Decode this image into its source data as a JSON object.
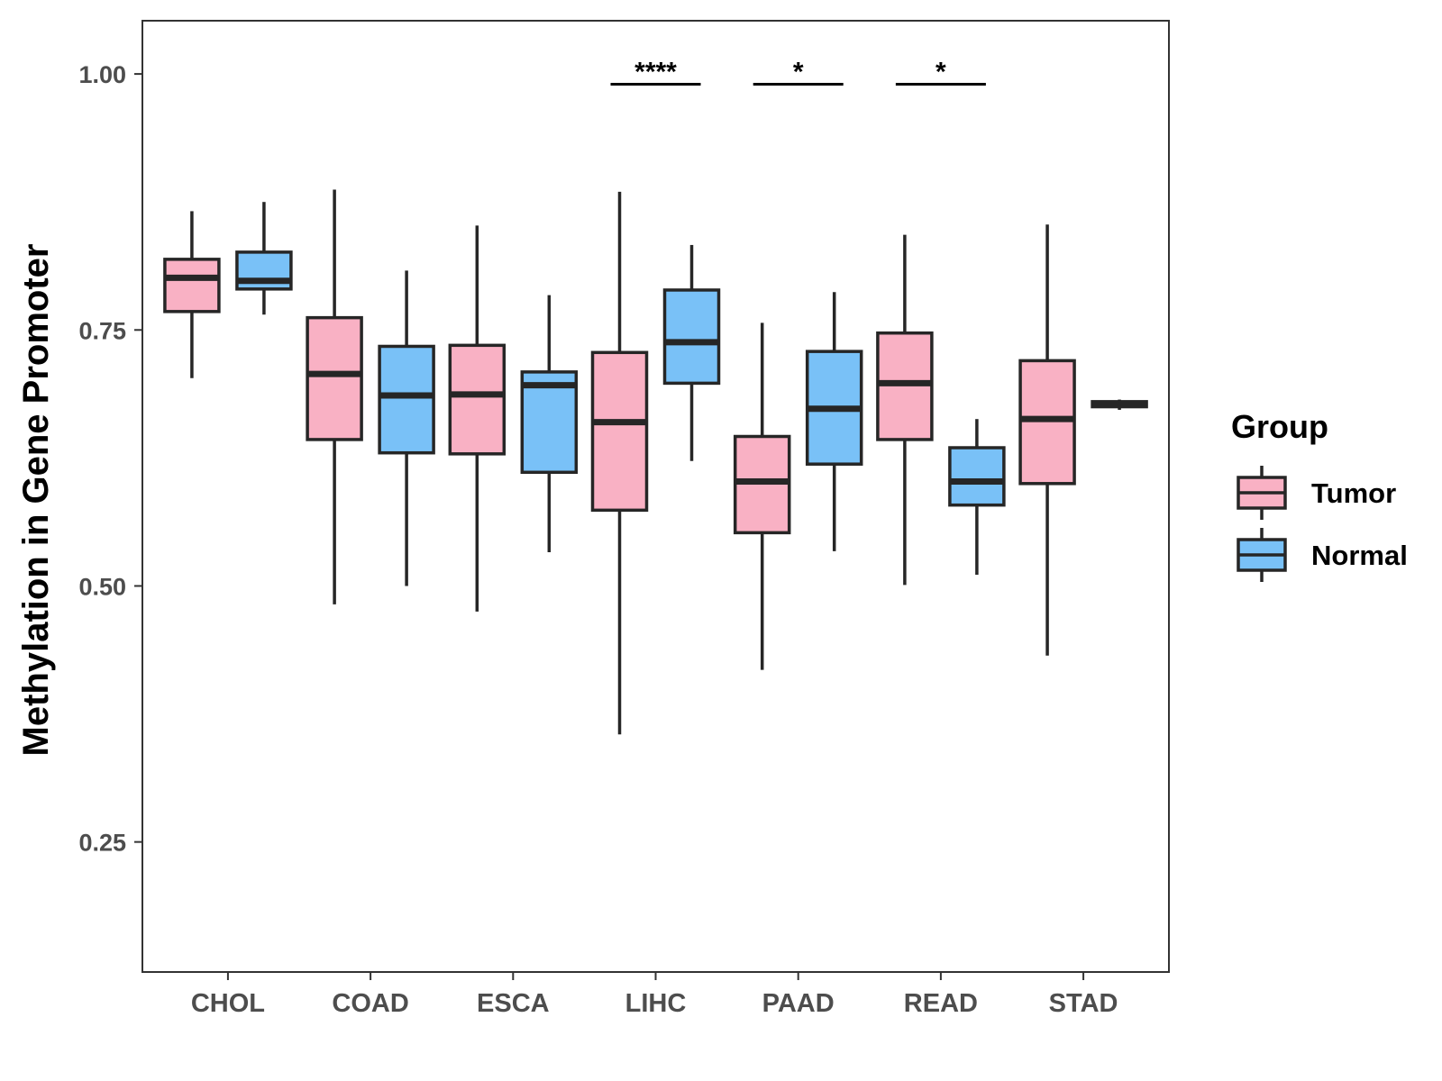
{
  "chart_data": {
    "type": "box",
    "ylabel": "Methylation in Gene Promoter",
    "xlabel": "",
    "ylim": [
      0.123,
      1.052
    ],
    "yticks": [
      0.25,
      0.5,
      0.75,
      1.0
    ],
    "ytick_labels": [
      "0.25",
      "0.50",
      "0.75",
      "1.00"
    ],
    "grid": false,
    "legend_position": "right",
    "categories": [
      "CHOL",
      "COAD",
      "ESCA",
      "LIHC",
      "PAAD",
      "READ",
      "STAD"
    ],
    "legend": {
      "title": "Group",
      "entries": [
        {
          "label": "Tumor",
          "color": "#f9b1c4"
        },
        {
          "label": "Normal",
          "color": "#79c1f7"
        }
      ]
    },
    "series": [
      {
        "name": "Tumor",
        "color": "#f9b1c4",
        "boxes": [
          {
            "category": "CHOL",
            "min": 0.703,
            "q1": 0.768,
            "median": 0.801,
            "q3": 0.819,
            "max": 0.866
          },
          {
            "category": "COAD",
            "min": 0.482,
            "q1": 0.643,
            "median": 0.707,
            "q3": 0.762,
            "max": 0.887
          },
          {
            "category": "ESCA",
            "min": 0.475,
            "q1": 0.629,
            "median": 0.687,
            "q3": 0.735,
            "max": 0.852
          },
          {
            "category": "LIHC",
            "min": 0.355,
            "q1": 0.574,
            "median": 0.66,
            "q3": 0.728,
            "max": 0.885
          },
          {
            "category": "PAAD",
            "min": 0.418,
            "q1": 0.552,
            "median": 0.602,
            "q3": 0.646,
            "max": 0.757
          },
          {
            "category": "READ",
            "min": 0.501,
            "q1": 0.643,
            "median": 0.698,
            "q3": 0.747,
            "max": 0.843
          },
          {
            "category": "STAD",
            "min": 0.432,
            "q1": 0.6,
            "median": 0.663,
            "q3": 0.72,
            "max": 0.853
          }
        ]
      },
      {
        "name": "Normal",
        "color": "#79c1f7",
        "boxes": [
          {
            "category": "CHOL",
            "min": 0.765,
            "q1": 0.79,
            "median": 0.798,
            "q3": 0.826,
            "max": 0.875
          },
          {
            "category": "COAD",
            "min": 0.5,
            "q1": 0.63,
            "median": 0.686,
            "q3": 0.734,
            "max": 0.808
          },
          {
            "category": "ESCA",
            "min": 0.533,
            "q1": 0.611,
            "median": 0.696,
            "q3": 0.709,
            "max": 0.784
          },
          {
            "category": "LIHC",
            "min": 0.622,
            "q1": 0.698,
            "median": 0.738,
            "q3": 0.789,
            "max": 0.833
          },
          {
            "category": "PAAD",
            "min": 0.534,
            "q1": 0.619,
            "median": 0.673,
            "q3": 0.729,
            "max": 0.787
          },
          {
            "category": "READ",
            "min": 0.511,
            "q1": 0.579,
            "median": 0.602,
            "q3": 0.635,
            "max": 0.663
          },
          {
            "category": "STAD",
            "min": 0.672,
            "q1": 0.675,
            "median": 0.677,
            "q3": 0.68,
            "max": 0.682
          }
        ]
      }
    ],
    "annotations": [
      {
        "category": "LIHC",
        "label": "****",
        "y": 0.99
      },
      {
        "category": "PAAD",
        "label": "*",
        "y": 0.99
      },
      {
        "category": "READ",
        "label": "*",
        "y": 0.99
      }
    ]
  }
}
